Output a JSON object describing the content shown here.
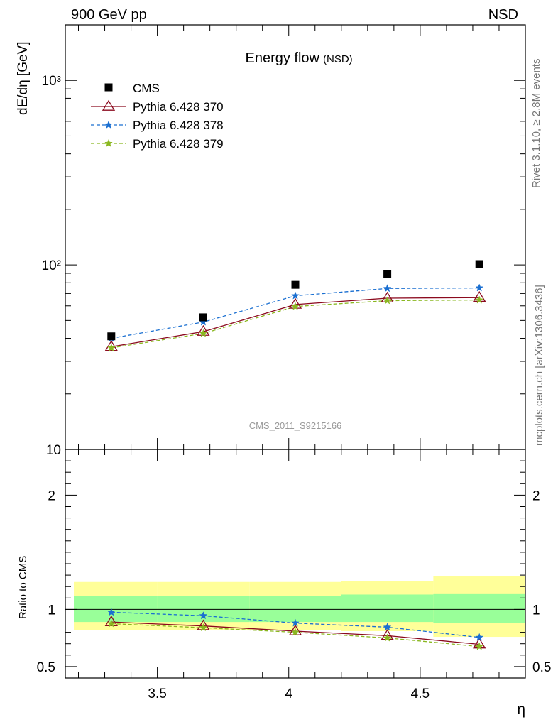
{
  "header": {
    "left": "900 GeV pp",
    "right": "NSD"
  },
  "side_text": {
    "rivet": "Rivet 3.1.10, ≥ 2.8M events",
    "mcplots": "mcplots.cern.ch [arXiv:1306.3436]"
  },
  "chart_data": {
    "type": "line",
    "title": "Energy flow",
    "subtitle": "(NSD)",
    "watermark": "CMS_2011_S9215166",
    "xlabel": "η",
    "ylabel": "dE/dη [GeV]",
    "ratio_ylabel": "Ratio to CMS",
    "xlim": [
      3.15,
      4.9
    ],
    "ylim": [
      10,
      2000
    ],
    "yscale": "log",
    "ratio_ylim": [
      0.4,
      2.4
    ],
    "x_ticks": [
      3.5,
      4,
      4.5
    ],
    "x_tick_labels": [
      "3.5",
      "4",
      "4.5"
    ],
    "y_ticks": [
      10,
      100,
      1000
    ],
    "y_tick_labels": [
      "10",
      "10²",
      "10³"
    ],
    "ratio_ticks": [
      0.5,
      1,
      2
    ],
    "ratio_tick_labels": [
      "0.5",
      "1",
      "2"
    ],
    "x": [
      3.325,
      3.675,
      4.025,
      4.375,
      4.725
    ],
    "bins": [
      [
        3.15,
        3.5
      ],
      [
        3.5,
        3.85
      ],
      [
        3.85,
        4.2
      ],
      [
        4.2,
        4.55
      ],
      [
        4.55,
        4.9
      ]
    ],
    "data": {
      "name": "CMS",
      "values": [
        41,
        52,
        78,
        89,
        101
      ]
    },
    "band_inner": [
      [
        0.89,
        1.12
      ],
      [
        0.89,
        1.12
      ],
      [
        0.89,
        1.12
      ],
      [
        0.89,
        1.13
      ],
      [
        0.88,
        1.14
      ]
    ],
    "band_outer": [
      [
        0.82,
        1.24
      ],
      [
        0.82,
        1.24
      ],
      [
        0.82,
        1.24
      ],
      [
        0.81,
        1.25
      ],
      [
        0.76,
        1.29
      ]
    ],
    "series": [
      {
        "name": "Pythia 6.428 370",
        "color": "#8b0a1e",
        "dash": "",
        "marker": "triangle",
        "values": [
          36,
          43.5,
          61,
          66,
          66.5
        ],
        "ratio": [
          0.89,
          0.855,
          0.81,
          0.77,
          0.695
        ]
      },
      {
        "name": "Pythia 6.428 378",
        "color": "#1a6fd1",
        "dash": "5,3",
        "marker": "star",
        "values": [
          40,
          49,
          68,
          74.5,
          75
        ],
        "ratio": [
          0.975,
          0.945,
          0.88,
          0.845,
          0.755
        ]
      },
      {
        "name": "Pythia 6.428 379",
        "color": "#8ab820",
        "dash": "5,3",
        "marker": "star",
        "values": [
          35.5,
          42.5,
          59.5,
          64,
          64.5
        ],
        "ratio": [
          0.875,
          0.84,
          0.8,
          0.75,
          0.675
        ]
      }
    ],
    "legend_position": "top-left",
    "colors": {
      "band_inner": "#99ff99",
      "band_outer": "#ffff99",
      "data_marker": "#000000"
    }
  }
}
